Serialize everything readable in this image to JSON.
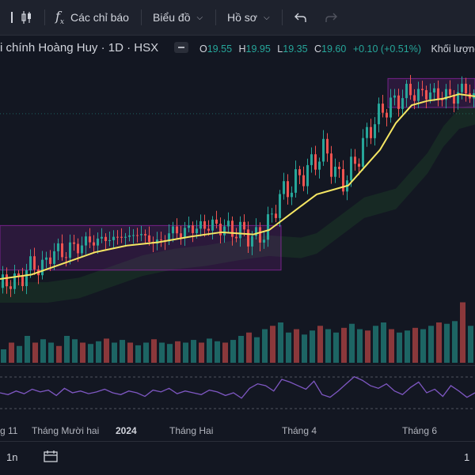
{
  "toolbar": {
    "indicators_label": "Các chỉ báo",
    "chart_label": "Biểu đồ",
    "profile_label": "Hồ sơ"
  },
  "legend": {
    "symbol_title": "i chính Hoàng Huy · 1D · HSX",
    "open_label": "O",
    "open": "19.55",
    "high_label": "H",
    "high": "19.95",
    "low_label": "L",
    "low": "19.35",
    "close_label": "C",
    "close": "19.60",
    "change": "+0.10 (+0.51%)",
    "volume_label": "Khối lượng"
  },
  "time_axis": {
    "labels": [
      "g 11",
      "Tháng Mười hai",
      "2024",
      "Tháng Hai",
      "Tháng 4",
      "Tháng 6"
    ]
  },
  "bottom": {
    "interval": "1n",
    "right_text": "1"
  },
  "colors": {
    "up": "#26a69a",
    "down": "#ef5350",
    "ma": "#f5e663",
    "rsi": "#7e57c2",
    "box": "#9c27b0"
  },
  "chart_data": {
    "type": "candlestick",
    "title": "",
    "x_labels": [
      "g 11",
      "Tháng Mười hai",
      "2024",
      "Tháng Hai",
      "Tháng 4",
      "Tháng 6"
    ],
    "price_path": [
      [
        0,
        14.2
      ],
      [
        10,
        14.6
      ],
      [
        20,
        14.4
      ],
      [
        30,
        14.9
      ],
      [
        40,
        15.3
      ],
      [
        50,
        15.0
      ],
      [
        60,
        15.6
      ],
      [
        70,
        15.9
      ],
      [
        80,
        15.7
      ],
      [
        90,
        16.1
      ],
      [
        100,
        16.0
      ],
      [
        110,
        16.4
      ],
      [
        120,
        16.2
      ],
      [
        130,
        16.5
      ],
      [
        140,
        16.3
      ],
      [
        150,
        16.6
      ],
      [
        160,
        16.4
      ],
      [
        170,
        16.7
      ],
      [
        180,
        16.5
      ],
      [
        190,
        16.3
      ],
      [
        200,
        16.2
      ],
      [
        210,
        16.6
      ],
      [
        220,
        16.8
      ],
      [
        230,
        16.6
      ],
      [
        240,
        17.0
      ],
      [
        250,
        16.8
      ],
      [
        260,
        17.1
      ],
      [
        270,
        16.9
      ],
      [
        280,
        17.0
      ],
      [
        290,
        16.7
      ],
      [
        300,
        16.8
      ],
      [
        310,
        16.6
      ],
      [
        320,
        16.4
      ],
      [
        330,
        16.6
      ],
      [
        340,
        17.2
      ],
      [
        350,
        18.2
      ],
      [
        360,
        18.6
      ],
      [
        370,
        18.9
      ],
      [
        380,
        19.3
      ],
      [
        390,
        19.6
      ],
      [
        400,
        20.1
      ],
      [
        410,
        20.4
      ],
      [
        420,
        19.5
      ],
      [
        430,
        18.9
      ],
      [
        440,
        19.4
      ],
      [
        450,
        20.0
      ],
      [
        460,
        20.9
      ],
      [
        470,
        21.6
      ],
      [
        480,
        22.1
      ],
      [
        490,
        22.4
      ],
      [
        500,
        22.6
      ],
      [
        510,
        22.9
      ],
      [
        520,
        23.0
      ],
      [
        530,
        22.8
      ],
      [
        540,
        23.1
      ],
      [
        550,
        22.7
      ],
      [
        560,
        23.0
      ],
      [
        570,
        22.6
      ],
      [
        580,
        23.2
      ],
      [
        590,
        22.9
      ],
      [
        600,
        22.8
      ]
    ],
    "ma_path": [
      [
        0,
        14.6
      ],
      [
        40,
        14.8
      ],
      [
        80,
        15.3
      ],
      [
        120,
        15.8
      ],
      [
        160,
        16.1
      ],
      [
        200,
        16.25
      ],
      [
        240,
        16.5
      ],
      [
        280,
        16.7
      ],
      [
        320,
        16.6
      ],
      [
        340,
        16.8
      ],
      [
        370,
        17.6
      ],
      [
        400,
        18.4
      ],
      [
        420,
        18.6
      ],
      [
        440,
        18.8
      ],
      [
        460,
        19.6
      ],
      [
        480,
        20.4
      ],
      [
        500,
        21.6
      ],
      [
        520,
        22.4
      ],
      [
        540,
        22.6
      ],
      [
        560,
        22.7
      ],
      [
        580,
        22.9
      ],
      [
        600,
        22.8
      ]
    ],
    "price_range": [
      13.5,
      24.5
    ],
    "volume_levels": [
      0.2,
      0.3,
      0.25,
      0.4,
      0.3,
      0.35,
      0.3,
      0.25,
      0.4,
      0.35,
      0.3,
      0.28,
      0.32,
      0.36,
      0.3,
      0.34,
      0.3,
      0.26,
      0.3,
      0.35,
      0.3,
      0.28,
      0.32,
      0.3,
      0.34,
      0.3,
      0.36,
      0.32,
      0.3,
      0.34,
      0.4,
      0.45,
      0.38,
      0.5,
      0.55,
      0.6,
      0.45,
      0.5,
      0.42,
      0.48,
      0.55,
      0.5,
      0.45,
      0.52,
      0.58,
      0.5,
      0.48,
      0.55,
      0.6,
      0.5,
      0.45,
      0.48,
      0.52,
      0.5,
      0.55,
      0.6,
      0.58,
      0.62,
      0.9,
      0.55
    ],
    "rsi": [
      50,
      48,
      52,
      49,
      54,
      51,
      53,
      47,
      55,
      50,
      52,
      49,
      51,
      54,
      50,
      48,
      52,
      50,
      46,
      53,
      51,
      55,
      49,
      52,
      50,
      48,
      53,
      51,
      47,
      50,
      44,
      55,
      60,
      58,
      52,
      65,
      62,
      58,
      54,
      63,
      48,
      45,
      52,
      60,
      68,
      64,
      58,
      55,
      60,
      52,
      48,
      56,
      62,
      50,
      54,
      46,
      58,
      52,
      45,
      50
    ],
    "highlight_boxes": [
      {
        "from_x": 0,
        "to_x": 355,
        "low": 15.0,
        "high": 17.0
      },
      {
        "from_x": 490,
        "to_x": 600,
        "low": 22.3,
        "high": 23.6
      }
    ]
  }
}
